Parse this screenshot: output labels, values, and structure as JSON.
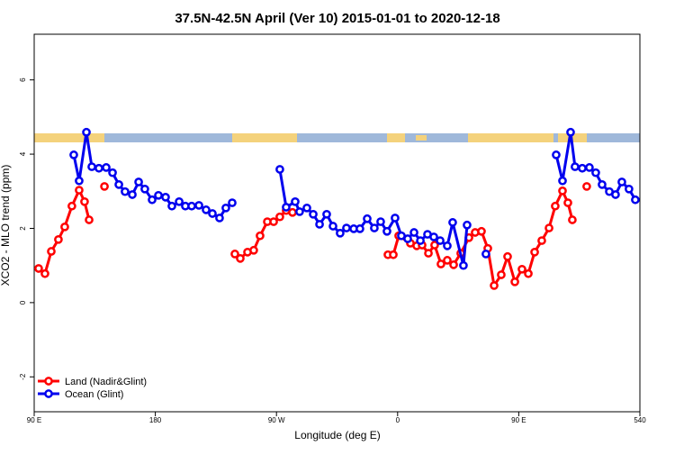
{
  "chart_data": {
    "type": "line",
    "title": "37.5N-42.5N April (Ver 10)   2015-01-01 to 2020-12-18",
    "x_label": "Longitude (deg E)",
    "y_label": "XCO2 - MLO trend (ppm)",
    "xlim": [
      90,
      540
    ],
    "ylim": [
      -2.94,
      7.23
    ],
    "xticks": [
      {
        "value": 90,
        "label": "90 E"
      },
      180,
      {
        "value": 270,
        "label": "90 W"
      },
      {
        "value": 360,
        "label": "0"
      },
      {
        "value": 450,
        "label": "90 E"
      },
      540
    ],
    "yticks": [
      -2,
      0,
      2,
      4,
      6
    ],
    "legend": "bottom-left",
    "series": [
      {
        "name": "Land (Nadir&Glint)",
        "color": "#ff0000",
        "x": [
          93.3,
          98,
          102.7,
          108,
          112.7,
          118,
          123.4,
          127.4,
          130.8,
          null,
          142.2,
          null,
          239.1,
          243.1,
          248.5,
          253.1,
          257.8,
          263.2,
          267.9,
          272.5,
          277.2,
          281.9,
          null,
          352.8,
          356.8,
          360.8,
          369.5,
          374.2,
          378.2,
          382.9,
          387.5,
          392.2,
          396.9,
          401.6,
          406.9,
          413,
          417.6,
          422.3,
          427,
          431.7,
          437,
          441.7,
          447.1,
          452.4,
          457.1,
          461.8,
          467.1,
          472.5,
          477.1,
          482.5,
          486.5,
          489.8,
          null,
          500.5
        ],
        "values": [
          0.92,
          0.78,
          1.38,
          1.7,
          2.04,
          2.6,
          3.03,
          2.72,
          2.23,
          null,
          3.13,
          null,
          1.31,
          1.19,
          1.36,
          1.41,
          1.8,
          2.18,
          2.18,
          2.31,
          2.48,
          2.43,
          null,
          1.29,
          1.29,
          1.8,
          1.6,
          1.53,
          1.55,
          1.33,
          1.55,
          1.04,
          1.14,
          1.02,
          1.33,
          1.75,
          1.89,
          1.92,
          1.46,
          0.46,
          0.75,
          1.24,
          0.56,
          0.9,
          0.78,
          1.36,
          1.67,
          2.01,
          2.6,
          3.01,
          2.69,
          2.23,
          null,
          3.13
        ]
      },
      {
        "name": "Ocean (Glint)",
        "color": "#0000ee",
        "x": [
          119.4,
          123.4,
          128.8,
          132.8,
          138.1,
          143.5,
          148.2,
          152.9,
          157.5,
          162.9,
          167.6,
          172.2,
          177.6,
          182.3,
          187.6,
          192.3,
          197.7,
          202.3,
          207,
          212.4,
          217.7,
          222.4,
          227.7,
          232.4,
          237.1,
          null,
          272.5,
          277.2,
          283.9,
          287.2,
          292.6,
          297.3,
          302,
          307.3,
          312,
          317.3,
          322,
          327.4,
          332,
          337.4,
          342.7,
          347.4,
          352.1,
          358.1,
          362.8,
          367.5,
          372.2,
          376.9,
          382.2,
          386.9,
          391.6,
          396.9,
          400.9,
          408.9,
          411.6,
          null,
          425.6,
          null,
          477.8,
          482.5,
          488.5,
          491.8,
          497.2,
          502.5,
          507.2,
          511.9,
          517.3,
          521.9,
          526.6,
          531.9,
          536.6
        ],
        "values": [
          3.98,
          3.28,
          4.59,
          3.66,
          3.62,
          3.64,
          3.5,
          3.18,
          2.99,
          2.91,
          3.25,
          3.06,
          2.77,
          2.89,
          2.84,
          2.6,
          2.72,
          2.6,
          2.6,
          2.62,
          2.5,
          2.4,
          2.28,
          2.55,
          2.69,
          null,
          3.59,
          2.57,
          2.72,
          2.45,
          2.55,
          2.38,
          2.11,
          2.38,
          2.06,
          1.87,
          2.01,
          1.99,
          1.99,
          2.26,
          2.01,
          2.18,
          1.92,
          2.28,
          1.8,
          1.72,
          1.89,
          1.67,
          1.84,
          1.77,
          1.67,
          1.53,
          2.16,
          1.0,
          2.09,
          null,
          1.31,
          null,
          3.98,
          3.28,
          4.59,
          3.66,
          3.62,
          3.64,
          3.5,
          3.18,
          2.99,
          2.91,
          3.25,
          3.06,
          2.77
        ]
      }
    ]
  }
}
